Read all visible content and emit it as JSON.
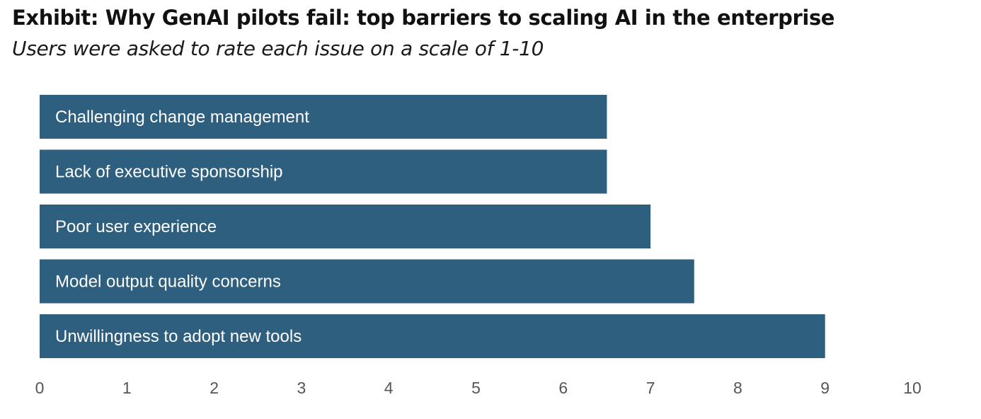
{
  "header": {
    "title": "Exhibit: Why GenAI pilots fail: top barriers to scaling AI in the enterprise",
    "subtitle": "Users were asked to rate each issue on a scale of 1-10"
  },
  "chart_data": {
    "type": "bar",
    "orientation": "horizontal",
    "title": "Exhibit: Why GenAI pilots fail: top barriers to scaling AI in the enterprise",
    "subtitle": "Users were asked to rate each issue on a scale of 1-10",
    "categories": [
      "Challenging change management",
      "Lack of executive sponsorship",
      "Poor user experience",
      "Model output quality concerns",
      "Unwillingness to adopt new tools"
    ],
    "values": [
      6.5,
      6.5,
      7.0,
      7.5,
      9.0
    ],
    "xlim": [
      0,
      10
    ],
    "xticks": [
      "0",
      "1",
      "2",
      "3",
      "4",
      "5",
      "6",
      "7",
      "8",
      "9",
      "10"
    ],
    "xlabel": "",
    "ylabel": "",
    "grid": false,
    "legend": "none",
    "bar_color": "#2e5f7f",
    "label_position": "inside-left"
  }
}
